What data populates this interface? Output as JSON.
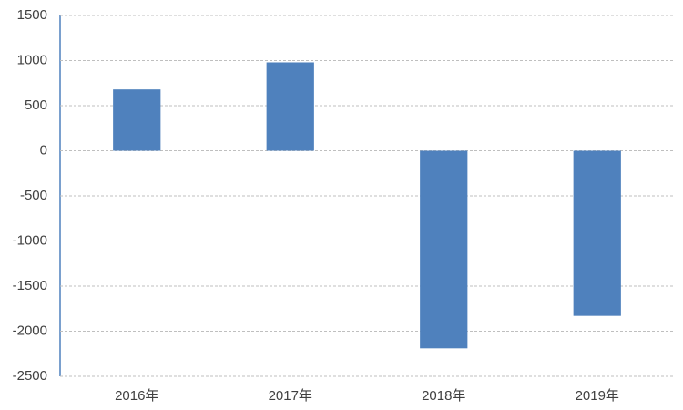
{
  "chart_data": {
    "type": "bar",
    "categories": [
      "2016年",
      "2017年",
      "2018年",
      "2019年"
    ],
    "values": [
      680,
      980,
      -2190,
      -1830
    ],
    "color": "#4f81bd",
    "ylim": [
      -2500,
      1500
    ],
    "yticks": [
      -2500,
      -2000,
      -1500,
      -1000,
      -500,
      0,
      500,
      1000,
      1500
    ],
    "grid": true
  }
}
